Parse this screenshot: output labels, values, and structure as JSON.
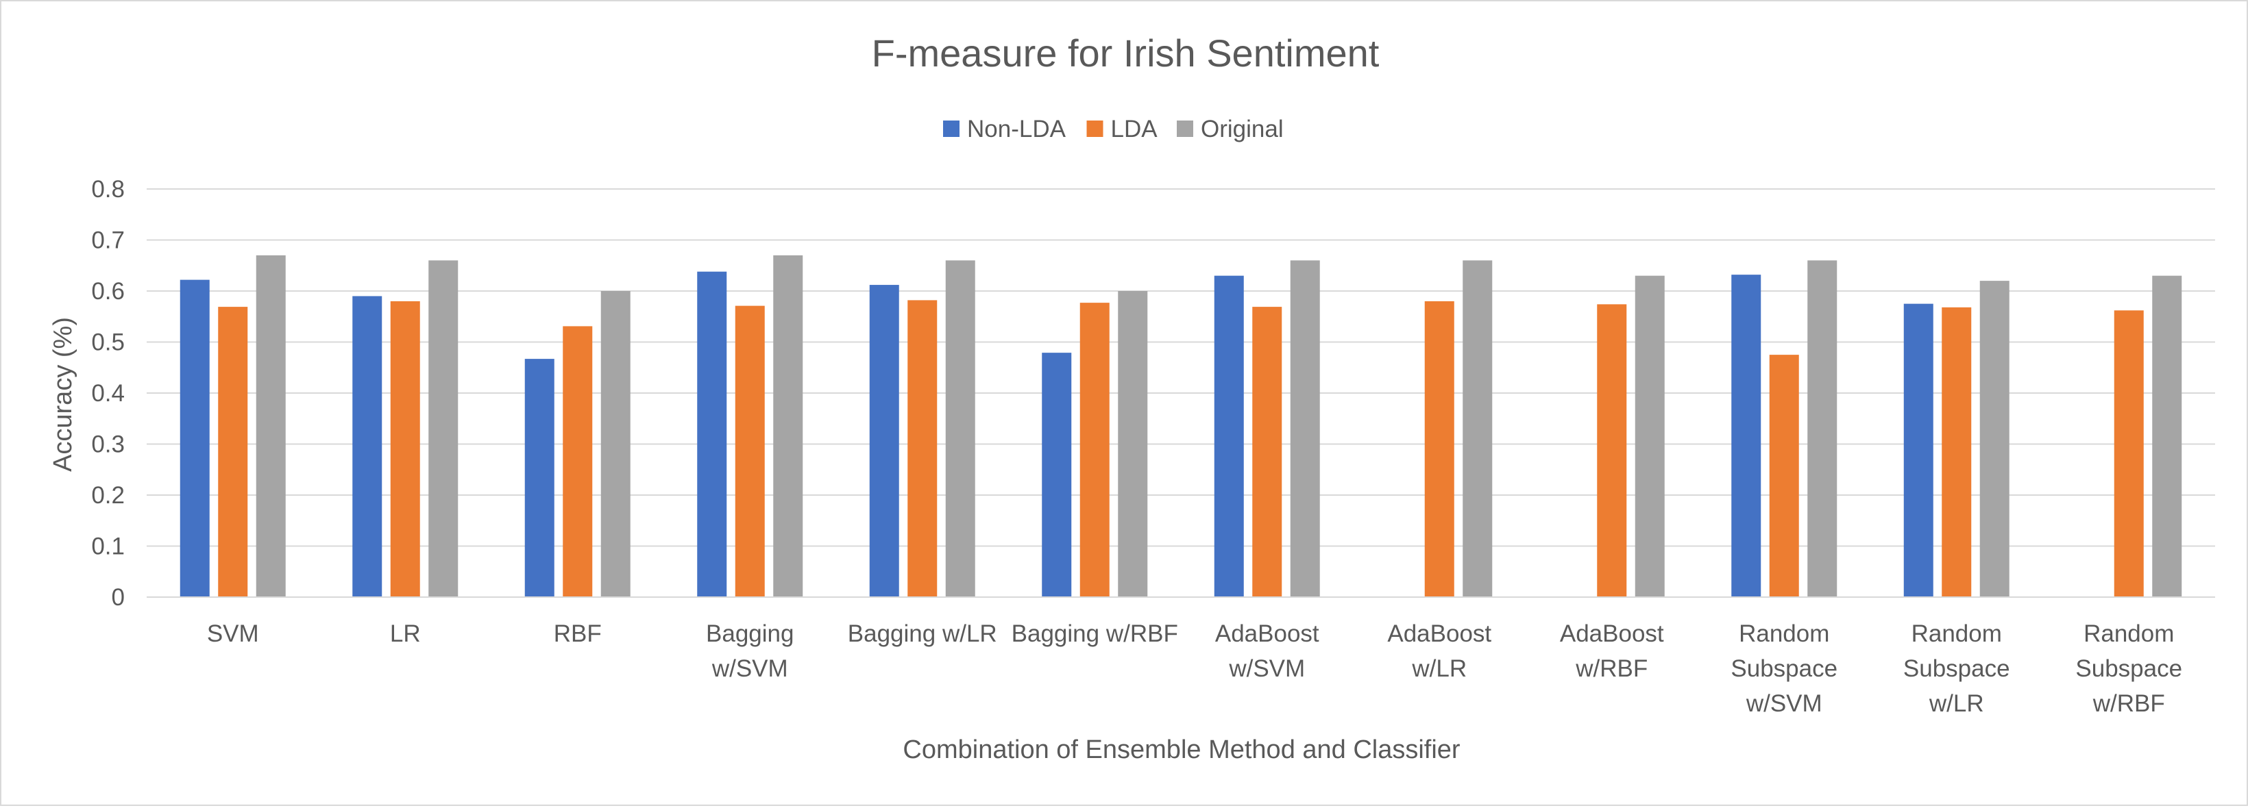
{
  "chart_data": {
    "type": "bar",
    "title": "F-measure for Irish Sentiment",
    "xlabel": "Combination of Ensemble Method and Classifier",
    "ylabel": "Accuracy (%)",
    "ylim": [
      0,
      0.8
    ],
    "yticks": [
      0,
      0.1,
      0.2,
      0.3,
      0.4,
      0.5,
      0.6,
      0.7,
      0.8
    ],
    "ytick_labels": [
      "0",
      "0.1",
      "0.2",
      "0.3",
      "0.4",
      "0.5",
      "0.6",
      "0.7",
      "0.8"
    ],
    "grid": true,
    "legend_position": "top-center",
    "categories": [
      [
        "SVM"
      ],
      [
        "LR"
      ],
      [
        "RBF"
      ],
      [
        "Bagging",
        "w/SVM"
      ],
      [
        "Bagging w/LR"
      ],
      [
        "Bagging w/RBF"
      ],
      [
        "AdaBoost",
        "w/SVM"
      ],
      [
        "AdaBoost",
        "w/LR"
      ],
      [
        "AdaBoost",
        "w/RBF"
      ],
      [
        "Random",
        "Subspace",
        "w/SVM"
      ],
      [
        "Random",
        "Subspace",
        "w/LR"
      ],
      [
        "Random",
        "Subspace",
        "w/RBF"
      ]
    ],
    "series": [
      {
        "name": "Non-LDA",
        "color": "#4472c4",
        "values": [
          0.622,
          0.59,
          0.467,
          0.638,
          0.612,
          0.479,
          0.63,
          0,
          0,
          0.632,
          0.575,
          0
        ]
      },
      {
        "name": "LDA",
        "color": "#ed7d31",
        "values": [
          0.569,
          0.58,
          0.531,
          0.571,
          0.582,
          0.577,
          0.569,
          0.58,
          0.574,
          0.475,
          0.568,
          0.562
        ]
      },
      {
        "name": "Original",
        "color": "#a5a5a5",
        "values": [
          0.67,
          0.66,
          0.6,
          0.67,
          0.66,
          0.6,
          0.66,
          0.66,
          0.63,
          0.66,
          0.62,
          0.63
        ]
      }
    ]
  }
}
